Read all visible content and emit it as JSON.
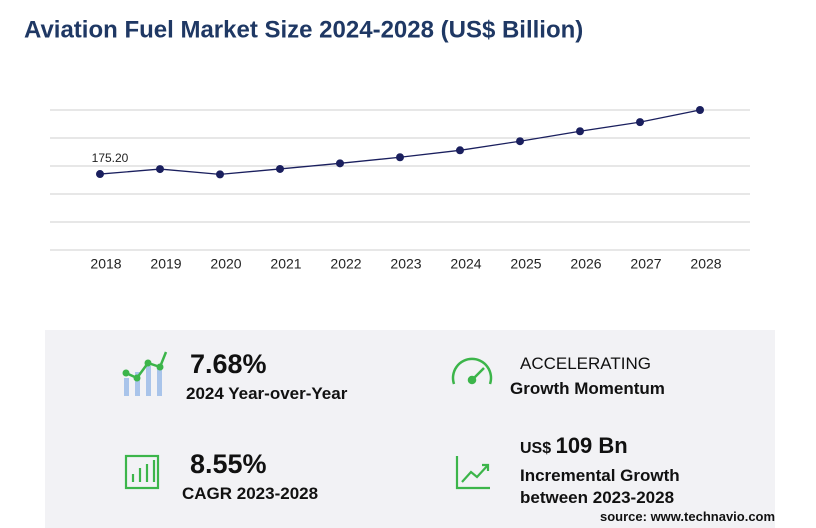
{
  "chart_data": {
    "type": "line",
    "title": "Aviation Fuel Market Size 2024-2028 (US$ Billion)",
    "categories": [
      "2018",
      "2019",
      "2020",
      "2021",
      "2022",
      "2023",
      "2024",
      "2025",
      "2026",
      "2027",
      "2028"
    ],
    "series": [
      {
        "color": "#1a1f5e",
        "values": [
          175.2,
          186.7,
          174.5,
          187,
          200,
          214,
          230,
          251,
          274,
          295,
          323
        ],
        "value_labels": [
          "175.20",
          null,
          null,
          null,
          null,
          null,
          null,
          null,
          null,
          null,
          null
        ]
      }
    ],
    "ylim": [
      0,
      323
    ],
    "grid": true
  },
  "kpis": {
    "yoy_value": "7.68%",
    "yoy_label": "2024 Year-over-Year",
    "momentum_title": "ACCELERATING",
    "momentum_label": "Growth Momentum",
    "cagr_value": "8.55%",
    "cagr_label": "CAGR 2023-2028",
    "increment_prefix": "US$",
    "increment_value": "109 Bn",
    "increment_label_1": "Incremental Growth",
    "increment_label_2": "between 2023-2028"
  },
  "source": "source: www.technavio.com"
}
